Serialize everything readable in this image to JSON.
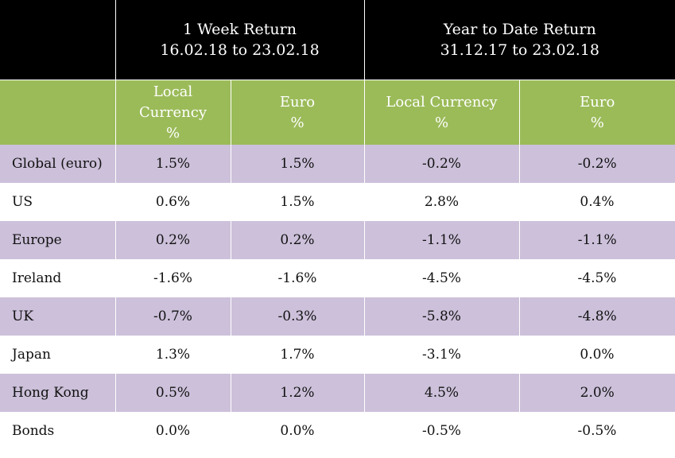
{
  "header": {
    "week": {
      "line1": "1 Week Return",
      "line2": "16.02.18 to 23.02.18"
    },
    "ytd": {
      "line1": "Year to Date Return",
      "line2": "31.12.17 to 23.02.18"
    }
  },
  "subheader": {
    "week_local": {
      "l1": "Local",
      "l2": "Currency",
      "l3": "%"
    },
    "week_euro": {
      "l1": "Euro",
      "l2": "%"
    },
    "ytd_local": {
      "l1": "Local Currency",
      "l2": "%"
    },
    "ytd_euro": {
      "l1": "Euro",
      "l2": "%"
    }
  },
  "colors": {
    "header_bg": "#000000",
    "subheader_bg": "#9bbb59",
    "shade_bg": "#ccc0da"
  },
  "rows": [
    {
      "market": "Global (euro)",
      "week_local": "1.5%",
      "week_euro": "1.5%",
      "ytd_local": "-0.2%",
      "ytd_euro": "-0.2%"
    },
    {
      "market": "US",
      "week_local": "0.6%",
      "week_euro": "1.5%",
      "ytd_local": "2.8%",
      "ytd_euro": "0.4%"
    },
    {
      "market": "Europe",
      "week_local": "0.2%",
      "week_euro": "0.2%",
      "ytd_local": "-1.1%",
      "ytd_euro": "-1.1%"
    },
    {
      "market": "Ireland",
      "week_local": "-1.6%",
      "week_euro": "-1.6%",
      "ytd_local": "-4.5%",
      "ytd_euro": "-4.5%"
    },
    {
      "market": "UK",
      "week_local": "-0.7%",
      "week_euro": "-0.3%",
      "ytd_local": "-5.8%",
      "ytd_euro": "-4.8%"
    },
    {
      "market": "Japan",
      "week_local": "1.3%",
      "week_euro": "1.7%",
      "ytd_local": "-3.1%",
      "ytd_euro": "0.0%"
    },
    {
      "market": "Hong Kong",
      "week_local": "0.5%",
      "week_euro": "1.2%",
      "ytd_local": "4.5%",
      "ytd_euro": "2.0%"
    },
    {
      "market": "Bonds",
      "week_local": "0.0%",
      "week_euro": "0.0%",
      "ytd_local": "-0.5%",
      "ytd_euro": "-0.5%"
    }
  ]
}
